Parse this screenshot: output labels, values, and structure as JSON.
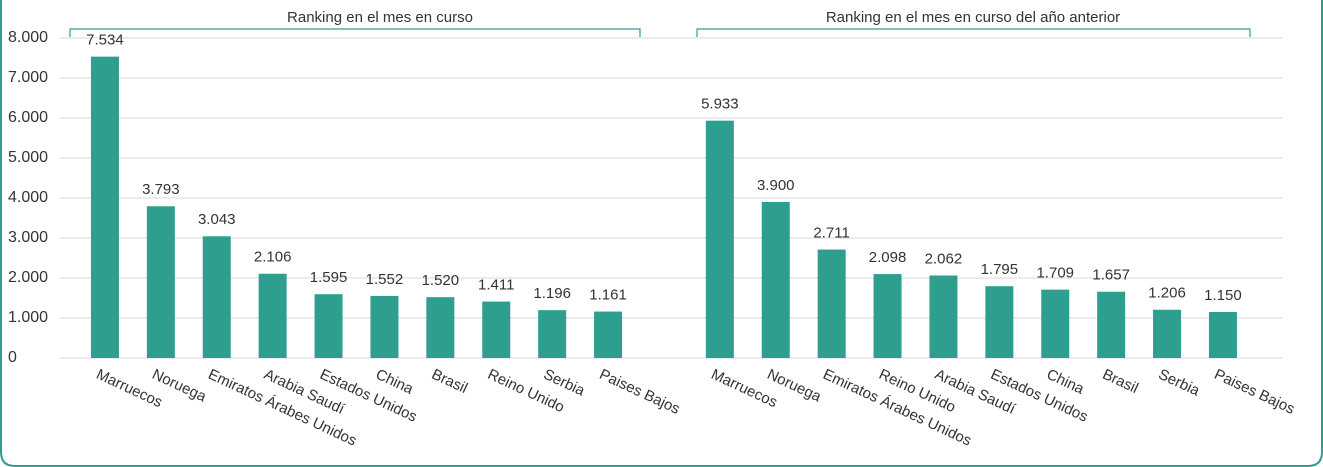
{
  "chart_data": {
    "type": "bar",
    "color": "#2e9e8e",
    "grid": true,
    "ylim": [
      0,
      8000
    ],
    "yticks": [
      0,
      {
        "value": 1000,
        "label": "1.000"
      },
      {
        "value": 2000,
        "label": "2.000"
      },
      {
        "value": 3000,
        "label": "3.000"
      },
      {
        "value": 4000,
        "label": "4.000"
      },
      {
        "value": 5000,
        "label": "5.000"
      },
      {
        "value": 6000,
        "label": "6.000"
      },
      {
        "value": 7000,
        "label": "7.000"
      },
      {
        "value": 8000,
        "label": "8.000"
      }
    ],
    "groups": [
      {
        "title": "Ranking en el mes en curso",
        "categories": [
          "Marruecos",
          "Noruega",
          "Emiratos Árabes Unidos",
          "Arabia Saudí",
          "Estados Unidos",
          "China",
          "Brasil",
          "Reino Unido",
          "Serbia",
          "Paises Bajos"
        ],
        "values": [
          7534,
          3793,
          3043,
          2106,
          1595,
          1552,
          1520,
          1411,
          1196,
          1161
        ],
        "value_labels": [
          "7.534",
          "3.793",
          "3.043",
          "2.106",
          "1.595",
          "1.552",
          "1.520",
          "1.411",
          "1.196",
          "1.161"
        ]
      },
      {
        "title": "Ranking en el mes en curso del año anterior",
        "categories": [
          "Marruecos",
          "Noruega",
          "Emiratos Árabes Unidos",
          "Reino Unido",
          "Arabia Saudí",
          "Estados Unidos",
          "China",
          "Brasil",
          "Serbia",
          "Paises Bajos"
        ],
        "values": [
          5933,
          3900,
          2711,
          2098,
          2062,
          1795,
          1709,
          1657,
          1206,
          1150
        ],
        "value_labels": [
          "5.933",
          "3.900",
          "2.711",
          "2.098",
          "2.062",
          "1.795",
          "1.709",
          "1.657",
          "1.206",
          "1.150"
        ]
      }
    ]
  }
}
